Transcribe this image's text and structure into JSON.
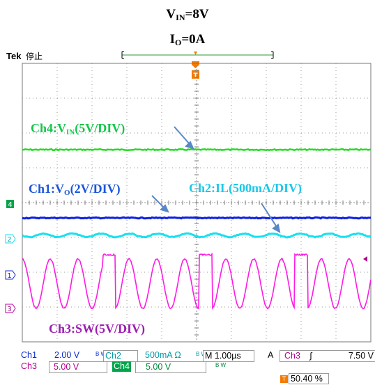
{
  "title": {
    "vin_main": "V",
    "vin_sub": "IN",
    "vin_rest": "=8V",
    "io_main": "I",
    "io_sub": "O",
    "io_rest": "=0A"
  },
  "scope": {
    "brand": "Tek",
    "run_state": "停止",
    "labels": {
      "ch4_main": "Ch4:V",
      "ch4_sub": "IN",
      "ch4_rest": "(5V/DIV)",
      "ch1_main": "Ch1:V",
      "ch1_sub": "O",
      "ch1_rest": "(2V/DIV)",
      "ch2": "Ch2:IL(500mA/DIV)",
      "ch3": "Ch3:SW(5V/DIV)"
    },
    "channel_markers": [
      "4",
      "2",
      "1",
      "3"
    ],
    "colors": {
      "ch1": "#0a1fe0",
      "ch2": "#19dff0",
      "ch3": "#ff1ae6",
      "ch4": "#22dd22",
      "label_ch4": "#13c64a",
      "label_ch1": "#1a56d8",
      "label_ch2": "#1cc8e8",
      "label_ch3": "#9b1db0",
      "arrow": "#5a87c8",
      "trigger": "#f47a00"
    }
  },
  "status": {
    "ch1_name": "Ch1",
    "ch1_scale": "2.00 V",
    "ch2_name": "Ch2",
    "ch2_scale": "500mA Ω",
    "timebase": "M 1.00µs",
    "acq_mode": "A",
    "trig_source": "Ch3",
    "trig_slope": "∫",
    "trig_level": "7.50 V",
    "ch3_name": "Ch3",
    "ch3_scale": "5.00 V",
    "ch4_name": "Ch4",
    "ch4_scale": "5.00 V",
    "bw_mark": "B W",
    "trigger_position": "50.40 %"
  }
}
